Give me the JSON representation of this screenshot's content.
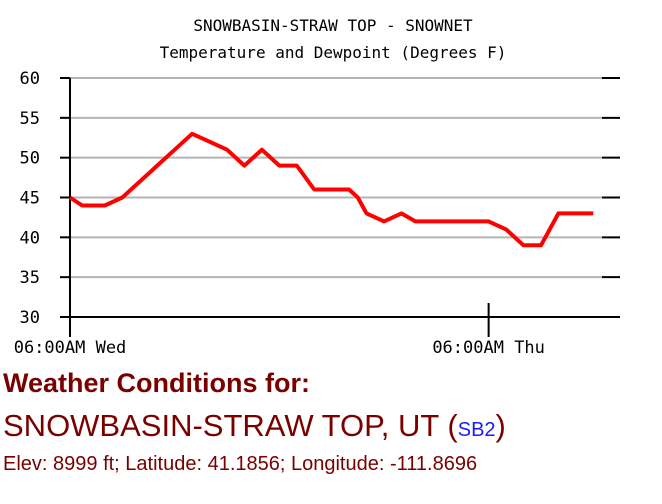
{
  "chart_data": {
    "type": "line",
    "title": "SNOWBASIN-STRAW TOP - SNOWNET",
    "subtitle": "Temperature and Dewpoint (Degrees F)",
    "ylim": [
      30,
      60
    ],
    "yticks": [
      30,
      35,
      40,
      45,
      50,
      55,
      60
    ],
    "xticks": [
      {
        "label": "06:00AM Wed",
        "hours": 0
      },
      {
        "label": "06:00AM Thu",
        "hours": 24
      }
    ],
    "xlim_hours": [
      0,
      30.5
    ],
    "grid": true,
    "line_color": "#ff0000",
    "series": [
      {
        "values": [
          [
            0,
            45
          ],
          [
            0.7,
            44
          ],
          [
            2,
            44
          ],
          [
            3,
            45
          ],
          [
            4.5,
            48
          ],
          [
            5,
            49
          ],
          [
            6,
            51
          ],
          [
            7,
            53
          ],
          [
            8,
            52
          ],
          [
            9,
            51
          ],
          [
            10,
            49
          ],
          [
            11,
            51
          ],
          [
            12,
            49
          ],
          [
            13,
            49
          ],
          [
            14,
            46
          ],
          [
            15,
            46
          ],
          [
            16,
            46
          ],
          [
            16.5,
            45
          ],
          [
            17,
            43
          ],
          [
            18,
            42
          ],
          [
            19,
            43
          ],
          [
            19.8,
            42
          ],
          [
            21,
            42
          ],
          [
            22,
            42
          ],
          [
            23,
            42
          ],
          [
            24,
            42
          ],
          [
            25,
            41
          ],
          [
            26,
            39
          ],
          [
            27,
            39
          ],
          [
            28,
            43
          ],
          [
            29,
            43
          ],
          [
            30,
            43
          ]
        ]
      }
    ]
  },
  "info": {
    "heading": "Weather Conditions for:",
    "station_name": "SNOWBASIN-STRAW TOP, UT (",
    "station_id": "SB2",
    "station_close": ")",
    "location": "Elev: 8999 ft; Latitude: 41.1856; Longitude: -111.8696"
  }
}
